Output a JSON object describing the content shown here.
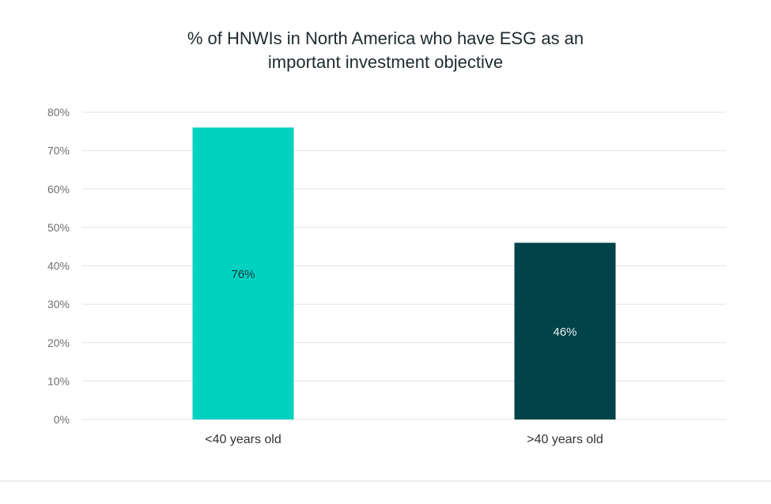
{
  "chart_data": {
    "type": "bar",
    "title_lines": [
      "% of HNWIs in North America who have ESG as an",
      "important investment objective"
    ],
    "categories": [
      "<40 years old",
      ">40 years old"
    ],
    "values": [
      76,
      46
    ],
    "data_labels": [
      "76%",
      "46%"
    ],
    "bar_colors": [
      "#00d1c1",
      "#004348"
    ],
    "data_label_colors": [
      "#1d3a3c",
      "#e6f2f2"
    ],
    "ylim": [
      0,
      80
    ],
    "yticks": [
      0,
      10,
      20,
      30,
      40,
      50,
      60,
      70,
      80
    ],
    "ytick_labels": [
      "0%",
      "10%",
      "20%",
      "30%",
      "40%",
      "50%",
      "60%",
      "70%",
      "80%"
    ],
    "grid": true,
    "legend": "none"
  }
}
